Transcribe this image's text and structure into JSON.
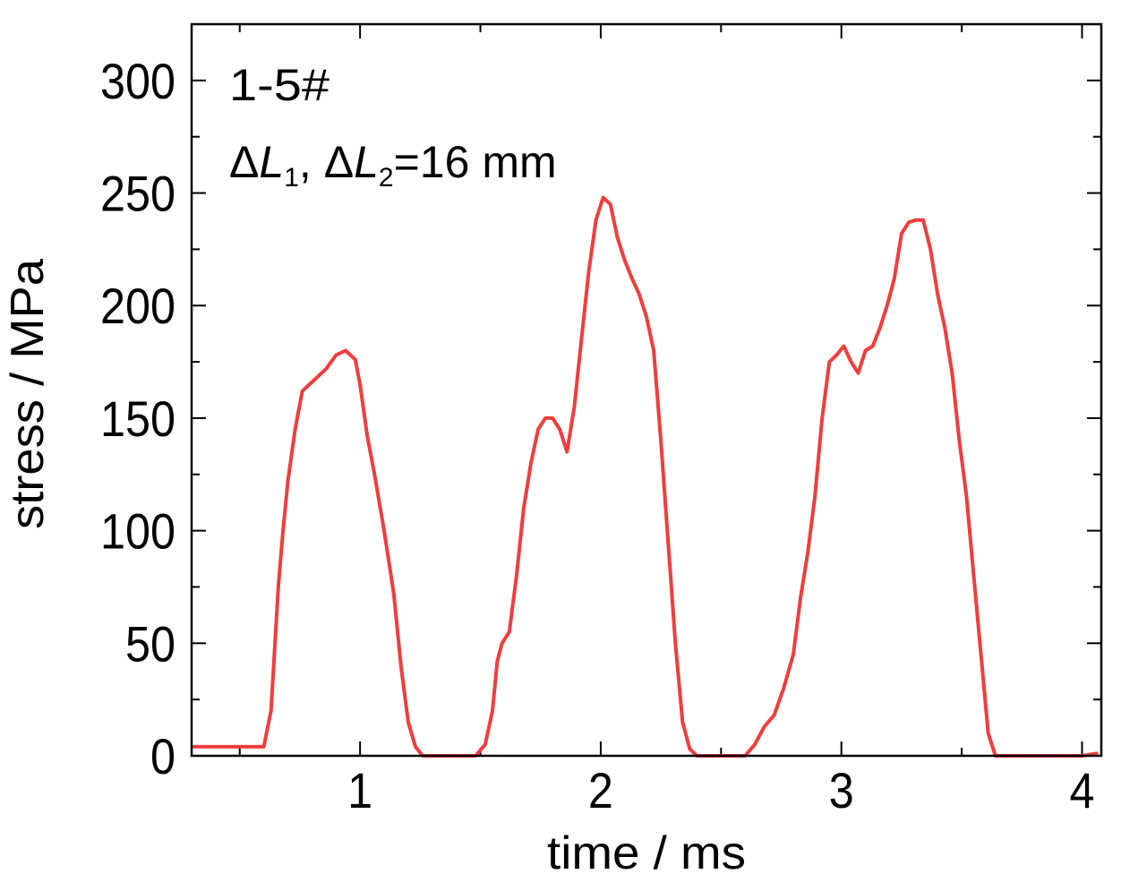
{
  "chart_data": {
    "type": "line",
    "xlabel": "time / ms",
    "ylabel": "stress / MPa",
    "xlim": [
      0.3,
      4.08
    ],
    "ylim": [
      0,
      325
    ],
    "x_ticks": [
      1,
      2,
      3,
      4
    ],
    "y_ticks": [
      0,
      50,
      100,
      150,
      200,
      250,
      300
    ],
    "annotations": {
      "specimen": "1-5#",
      "delta": "Δ",
      "L": "L",
      "sub1": "1",
      "sub2": "2",
      "sep": ", ",
      "value": "=16 mm"
    },
    "series": [
      {
        "color": "#f23c3c",
        "x": [
          0.31,
          0.45,
          0.6,
          0.63,
          0.66,
          0.68,
          0.7,
          0.73,
          0.76,
          0.79,
          0.82,
          0.86,
          0.9,
          0.94,
          0.98,
          1.0,
          1.03,
          1.06,
          1.1,
          1.14,
          1.17,
          1.2,
          1.23,
          1.26,
          1.29,
          1.33,
          1.4,
          1.48,
          1.52,
          1.55,
          1.57,
          1.59,
          1.62,
          1.65,
          1.68,
          1.71,
          1.74,
          1.77,
          1.8,
          1.83,
          1.86,
          1.89,
          1.92,
          1.95,
          1.98,
          2.01,
          2.04,
          2.07,
          2.1,
          2.13,
          2.16,
          2.19,
          2.22,
          2.25,
          2.28,
          2.31,
          2.34,
          2.37,
          2.4,
          2.43,
          2.46,
          2.5,
          2.6,
          2.64,
          2.68,
          2.72,
          2.76,
          2.8,
          2.83,
          2.86,
          2.89,
          2.92,
          2.95,
          2.98,
          3.01,
          3.04,
          3.07,
          3.1,
          3.13,
          3.16,
          3.19,
          3.22,
          3.25,
          3.28,
          3.31,
          3.34,
          3.37,
          3.4,
          3.43,
          3.46,
          3.49,
          3.52,
          3.55,
          3.58,
          3.61,
          3.64,
          3.67,
          3.7,
          3.75,
          4.0,
          4.06
        ],
        "y": [
          4,
          4,
          4,
          20,
          75,
          100,
          122,
          145,
          162,
          165,
          168,
          172,
          178,
          180,
          176,
          165,
          142,
          125,
          100,
          72,
          40,
          15,
          4,
          0,
          0,
          0,
          0,
          0,
          5,
          20,
          42,
          50,
          55,
          80,
          110,
          130,
          145,
          150,
          150,
          145,
          135,
          155,
          185,
          215,
          238,
          248,
          245,
          230,
          220,
          212,
          205,
          195,
          180,
          140,
          95,
          50,
          15,
          3,
          0,
          0,
          0,
          0,
          0,
          5,
          13,
          18,
          30,
          45,
          70,
          90,
          115,
          150,
          175,
          178,
          182,
          175,
          170,
          180,
          182,
          190,
          200,
          212,
          232,
          237,
          238,
          238,
          225,
          205,
          190,
          170,
          140,
          115,
          80,
          45,
          10,
          0,
          0,
          0,
          0,
          0,
          1
        ]
      }
    ]
  }
}
